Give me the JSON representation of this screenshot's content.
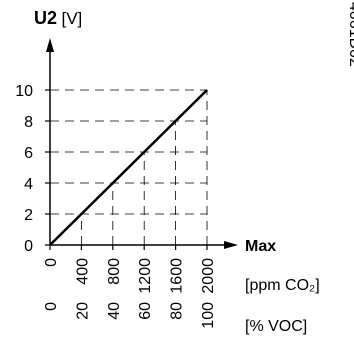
{
  "chart_data": {
    "type": "line",
    "y_label_symbol": "U2",
    "y_label_unit": "[V]",
    "x_end_label": "Max",
    "x_label": "[ppm CO₂]",
    "x2_label": "[% VOC]",
    "figure_id": "4061D02",
    "x": [
      0,
      2000
    ],
    "series": [
      {
        "color": "#000000",
        "values": [
          0,
          10
        ]
      }
    ],
    "xlim": [
      0,
      2000
    ],
    "xticks": [
      0,
      400,
      800,
      1200,
      1600,
      2000
    ],
    "x2lim": [
      0,
      100
    ],
    "x2ticks": [
      0,
      20,
      40,
      60,
      80,
      100
    ],
    "ylim": [
      0,
      10
    ],
    "yticks": [
      0,
      2,
      4,
      6,
      8,
      10
    ],
    "grid": true
  }
}
